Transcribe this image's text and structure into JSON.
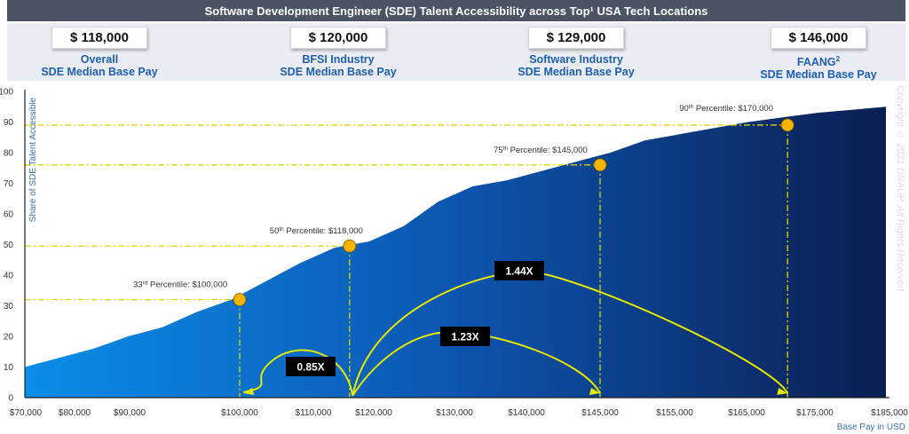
{
  "header": {
    "title": "Software Development Engineer (SDE) Talent Accessibility across Top¹ USA Tech Locations"
  },
  "summary_cards": [
    {
      "value": "$ 118,000",
      "line1": "Overall",
      "line2": "SDE Median Base Pay"
    },
    {
      "value": "$ 120,000",
      "line1": "BFSI Industry",
      "line2": "SDE Median Base Pay"
    },
    {
      "value": "$ 129,000",
      "line1": "Software Industry",
      "line2": "SDE Median Base Pay"
    },
    {
      "value": "$ 146,000",
      "line1": "FAANG²",
      "line2": "SDE Median Base Pay"
    }
  ],
  "watermark": "Copyright © 2021 DRAUP. All Rights Reserved",
  "chart_data": {
    "type": "area",
    "ylabel": "Share of  SDE Talent Accessible",
    "xlabel": "Base Pay in USD",
    "ylim": [
      0,
      100
    ],
    "y_ticks": [
      "0",
      "10",
      "20",
      "30",
      "40",
      "50",
      "60",
      "70",
      "80",
      "90",
      "100"
    ],
    "x_ticks": [
      "$70,000",
      "$80,000",
      "$90,000",
      "$100,000",
      "$110,000",
      "$120,000",
      "$130,000",
      "$140,000",
      "$145,000",
      "$155,000",
      "$165,000",
      "$175,000",
      "$185,000"
    ],
    "curve_y": [
      10,
      13,
      16,
      20,
      23,
      28,
      32,
      38,
      44,
      49,
      51,
      56,
      64,
      69,
      71,
      74,
      77,
      80,
      84,
      86,
      88,
      90,
      91.5,
      93,
      94,
      95
    ],
    "grid": false,
    "colors": {
      "area_light": "#0a8ee8",
      "area_dark": "#0b1f52",
      "accent": "#f5b400",
      "guide": "#d8d800",
      "arrow": "#e8e800"
    },
    "percentiles": [
      {
        "ord": "33",
        "sup": "rd",
        "text": " Percentile: $100,000",
        "tick_index": 3,
        "share": 32
      },
      {
        "ord": "50",
        "sup": "th",
        "text": " Percentile: $118,000",
        "tick_index": 4.6,
        "share": 49.5
      },
      {
        "ord": "75",
        "sup": "th",
        "text": " Percentile: $145,000",
        "tick_index": 8,
        "share": 76
      },
      {
        "ord": "90",
        "sup": "th",
        "text": " Percentile: $170,000",
        "tick_index": 10.6,
        "share": 89
      }
    ],
    "ratios": [
      {
        "label": "0.85X",
        "from_tick": 4.65,
        "to_tick": 3.05
      },
      {
        "label": "1.23X",
        "from_tick": 4.65,
        "to_tick": 8
      },
      {
        "label": "1.44X",
        "from_tick": 4.65,
        "to_tick": 10.6
      }
    ]
  }
}
